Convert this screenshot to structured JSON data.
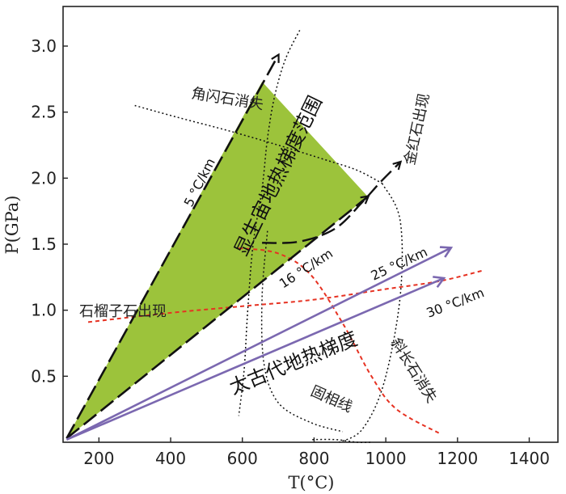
{
  "chart_data": {
    "type": "line",
    "xlabel": "T(°C)",
    "ylabel": "P(GPa)",
    "xlim": [
      100,
      1480
    ],
    "ylim": [
      0,
      3.3
    ],
    "x_ticks": [
      "200",
      "400",
      "600",
      "800",
      "1000",
      "1200",
      "1400"
    ],
    "y_ticks": [
      "0.5",
      "1.0",
      "1.5",
      "2.0",
      "2.5",
      "3.0"
    ],
    "grid": false,
    "regions": [
      {
        "name": "显生宙地热梯度范围",
        "color": "#9cc33b",
        "points": [
          [
            110,
            0.03
          ],
          [
            655,
            2.73
          ],
          [
            950,
            1.86
          ]
        ]
      }
    ],
    "gradient_lines": [
      {
        "label": "5 °C/km",
        "style": "long-dash",
        "color": "#111111",
        "from": [
          110,
          0.03
        ],
        "to": [
          700,
          2.93
        ]
      },
      {
        "label": "16 °C/km",
        "style": "long-dash",
        "color": "#111111",
        "from": [
          110,
          0.03
        ],
        "to": [
          950,
          1.86
        ]
      },
      {
        "label": "25 °C/km",
        "style": "solid-arrow",
        "color": "#7b68b0",
        "from": [
          110,
          0.02
        ],
        "to": [
          1180,
          1.47
        ]
      },
      {
        "label": "30 °C/km",
        "style": "solid-arrow",
        "color": "#7b68b0",
        "from": [
          110,
          0.02
        ],
        "to": [
          1160,
          1.24
        ]
      }
    ],
    "reaction_curves": [
      {
        "label": "角闪石消失",
        "style": "dotted",
        "color": "#111111",
        "points": [
          [
            760,
            3.12
          ],
          [
            720,
            2.9
          ],
          [
            690,
            2.62
          ],
          [
            670,
            2.3
          ],
          [
            655,
            1.92
          ],
          [
            630,
            1.5
          ],
          [
            615,
            1.0
          ],
          [
            605,
            0.55
          ],
          [
            590,
            0.2
          ]
        ]
      },
      {
        "label": "角闪石消失",
        "style": "dotted",
        "color": "#111111",
        "points": [
          [
            300,
            2.55
          ],
          [
            420,
            2.46
          ],
          [
            560,
            2.36
          ],
          [
            700,
            2.25
          ],
          [
            830,
            2.14
          ],
          [
            920,
            2.06
          ],
          [
            990,
            1.96
          ]
        ]
      },
      {
        "label": "固相线",
        "style": "dotted",
        "color": "#111111",
        "points": [
          [
            990,
            1.96
          ],
          [
            1040,
            1.68
          ],
          [
            1040,
            1.1
          ],
          [
            995,
            0.45
          ],
          [
            935,
            0.1
          ],
          [
            870,
            0.0
          ]
        ]
      },
      {
        "label": "固相线",
        "style": "dotted",
        "color": "#111111",
        "points": [
          [
            670,
            1.6
          ],
          [
            655,
            1.1
          ],
          [
            660,
            0.6
          ],
          [
            700,
            0.3
          ],
          [
            790,
            0.15
          ],
          [
            880,
            0.08
          ]
        ]
      },
      {
        "label": "固相线",
        "style": "dotted",
        "color": "#111111",
        "points": [
          [
            795,
            0.02
          ],
          [
            860,
            0.02
          ],
          [
            920,
            0.0
          ],
          [
            960,
            0.0
          ]
        ]
      },
      {
        "label": "金红石出现",
        "style": "long-dash",
        "color": "#111111",
        "points": [
          [
            655,
            1.51
          ],
          [
            760,
            1.52
          ],
          [
            860,
            1.62
          ],
          [
            935,
            1.82
          ],
          [
            985,
            1.97
          ],
          [
            1040,
            2.12
          ]
        ]
      },
      {
        "label": "石榴子石出现",
        "style": "dashed",
        "color": "#e63222",
        "points": [
          [
            170,
            0.91
          ],
          [
            400,
            0.98
          ],
          [
            600,
            1.03
          ],
          [
            800,
            1.08
          ],
          [
            1000,
            1.16
          ],
          [
            1150,
            1.22
          ],
          [
            1270,
            1.3
          ]
        ]
      },
      {
        "label": "斜长石消失",
        "style": "dashed",
        "color": "#e63222",
        "points": [
          [
            590,
            1.47
          ],
          [
            700,
            1.43
          ],
          [
            790,
            1.27
          ],
          [
            880,
            0.9
          ],
          [
            960,
            0.5
          ],
          [
            1030,
            0.25
          ],
          [
            1155,
            0.06
          ]
        ]
      }
    ],
    "region_labels": [
      {
        "text": "太古代地热梯度",
        "x": 735,
        "y": 0.47,
        "angle": -22
      }
    ]
  }
}
